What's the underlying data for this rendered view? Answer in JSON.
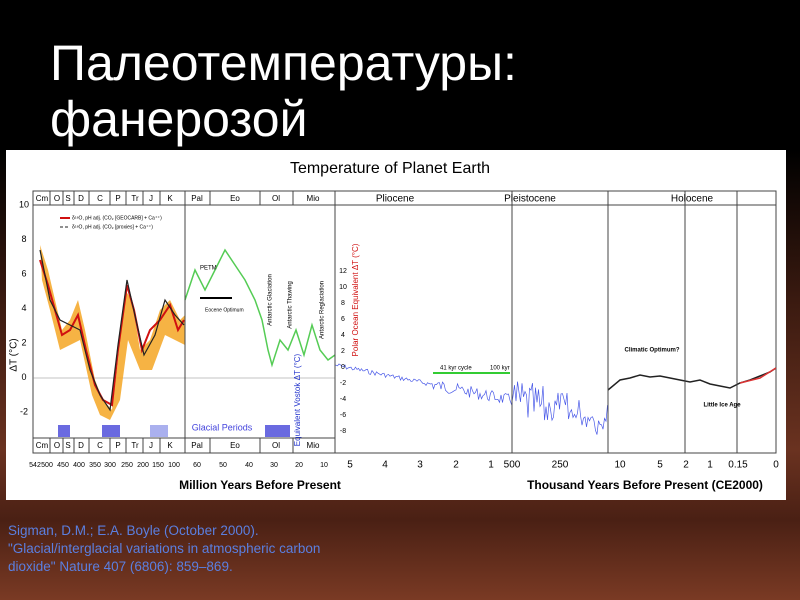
{
  "slide": {
    "title_lines": [
      "Палеотемпературы:",
      "фанерозой"
    ],
    "citation_lines": [
      "Sigman, D.M.; E.A. Boyle (October 2000).",
      "\"Glacial/interglacial variations in atmospheric carbon",
      "dioxide\" Nature 407 (6806): 859–869."
    ]
  },
  "figure": {
    "title": "Temperature of Planet Earth",
    "top_eras": [
      "Cm",
      "O",
      "S",
      "D",
      "C",
      "P",
      "Tr",
      "J",
      "K",
      "Pal",
      "Eo",
      "Ol",
      "Mio",
      "Pliocene",
      "Pleistocene",
      "Holocene"
    ],
    "bottom_eras": [
      "Cm",
      "O",
      "S",
      "D",
      "C",
      "P",
      "Tr",
      "J",
      "K",
      "Pal",
      "Eo",
      "Ol",
      "Mio"
    ],
    "x_ticks": [
      "542",
      "500",
      "450",
      "400",
      "350",
      "300",
      "250",
      "200",
      "150",
      "100",
      "60",
      "50",
      "40",
      "30",
      "20",
      "10",
      "5",
      "4",
      "3",
      "2",
      "1",
      "500",
      "250",
      "10",
      "5",
      "2",
      "1",
      "0.15",
      "0"
    ],
    "x_label_left": "Million Years Before Present",
    "x_label_right": "Thousand Years Before Present (CE2000)",
    "y_label": "ΔT (°C)",
    "y_ticks": [
      "10",
      "8",
      "6",
      "4",
      "2",
      "0",
      "-2"
    ],
    "y2_ticks": [
      "12",
      "10",
      "8",
      "6",
      "4",
      "2",
      "0",
      "-2",
      "-4",
      "-6",
      "-8"
    ],
    "legend": [
      "δ¹⁸O, pH adj. (CO₂ [GEOCARB] + Ca⁺⁺)",
      "δ¹⁸O, pH adj. (CO₂ [proxies] + Ca⁺⁺)"
    ],
    "annotations": {
      "glacial": "Glacial Periods",
      "petm": "PETM",
      "eocene": "Eocene Optimum",
      "ant_glac": "Antarctic Glaciation",
      "ant_thaw": "Antarctic Thawing",
      "ant_reglac": "Antarctic Reglaciation",
      "polar": "Polar Ocean Equivalent ΔT (°C)",
      "vostok": "Equivalent Vostok ΔT (°C)",
      "cycle41": "41 kyr cycle",
      "cycle100": "100 kyr",
      "climatic": "Climatic Optimum?",
      "lia": "Little Ice Age"
    }
  }
}
